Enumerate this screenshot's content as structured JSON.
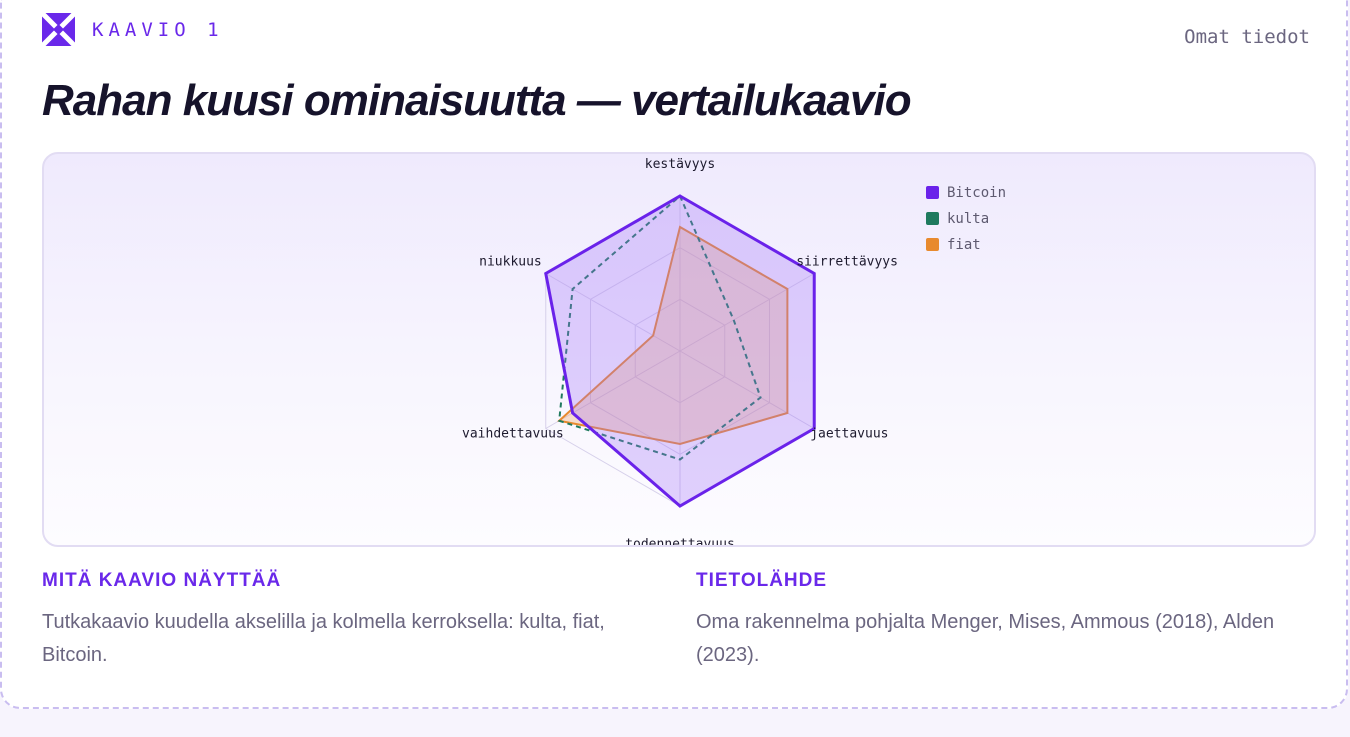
{
  "header": {
    "tag": "KAAVIO 1",
    "meta": "Omat tiedot",
    "title": "Rahan kuusi ominaisuutta — vertailukaavio"
  },
  "chart_data": {
    "type": "radar",
    "axes": [
      "kestävyys",
      "siirrettävyys",
      "jaettavuus",
      "todennettavuus",
      "vaihdettavuus",
      "niukkuus"
    ],
    "range": [
      0,
      10
    ],
    "rings": 3,
    "grid": true,
    "legend_position": "top-right",
    "series": [
      {
        "name": "Bitcoin",
        "values": [
          10,
          10,
          10,
          10,
          8,
          10
        ],
        "color": "#6a22ea",
        "fill": "rgba(160,110,250,0.30)",
        "stroke_width": 3,
        "dash": ""
      },
      {
        "name": "kulta",
        "values": [
          10,
          4,
          6,
          7,
          9,
          8
        ],
        "color": "#1f7a5e",
        "fill": "none",
        "stroke_width": 2,
        "dash": "5,4"
      },
      {
        "name": "fiat",
        "values": [
          8,
          8,
          8,
          6,
          9,
          2
        ],
        "color": "#e88a2e",
        "fill": "rgba(240,160,90,0.30)",
        "stroke_width": 2,
        "dash": ""
      }
    ]
  },
  "info": {
    "left_heading": "MITÄ KAAVIO NÄYTTÄÄ",
    "left_text": "Tutkakaavio kuudella akselilla ja kolmella kerroksella: kulta, fiat, Bitcoin.",
    "right_heading": "TIETOLÄHDE",
    "right_text": "Oma rakennelma pohjalta Menger, Mises, Ammous (2018), Alden (2023)."
  }
}
